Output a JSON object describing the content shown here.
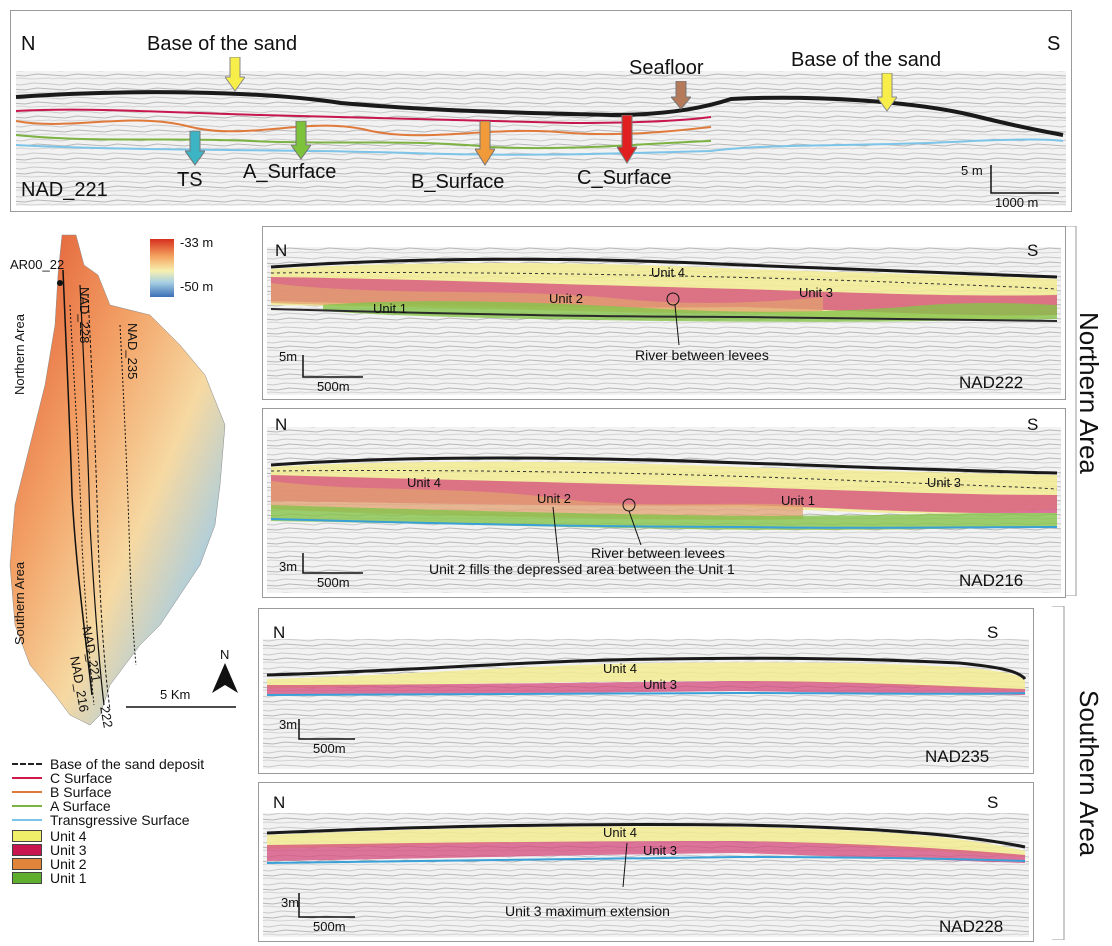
{
  "top_profile": {
    "name": "NAD_221",
    "north": "N",
    "south": "S",
    "labels": {
      "base_sand_left": "Base of the sand",
      "base_sand_right": "Base of the sand",
      "seafloor": "Seafloor",
      "ts": "TS",
      "a_surface": "A_Surface",
      "b_surface": "B_Surface",
      "c_surface": "C_Surface"
    },
    "scale_v": "5 m",
    "scale_h": "1000 m"
  },
  "map": {
    "colorbar_max": "-33 m",
    "colorbar_min": "-50 m",
    "profile_labels": [
      "AR00_22",
      "NAD_228",
      "NAD_235",
      "NAD_221",
      "NAD_216",
      "222"
    ],
    "area_north": "Northern Area",
    "area_south": "Southern Area",
    "north_arrow": "N",
    "scale": "5 Km"
  },
  "legend": [
    {
      "label": "Base of the sand deposit",
      "kind": "dashed",
      "color": "#222222"
    },
    {
      "label": "C Surface",
      "kind": "line",
      "color": "#d0194a"
    },
    {
      "label": "B Surface",
      "kind": "line",
      "color": "#e07a3a"
    },
    {
      "label": "A Surface",
      "kind": "line",
      "color": "#7cb342"
    },
    {
      "label": "Transgressive Surface",
      "kind": "line",
      "color": "#7cc4e8"
    },
    {
      "label": "Unit 4",
      "kind": "box",
      "color": "#f0ef6a"
    },
    {
      "label": "Unit 3",
      "kind": "box",
      "color": "#c8174f"
    },
    {
      "label": "Unit 2",
      "kind": "box",
      "color": "#e0843a"
    },
    {
      "label": "Unit 1",
      "kind": "box",
      "color": "#5fae2e"
    }
  ],
  "colors": {
    "unit4": "#e8e87a",
    "unit3": "#c23a6a",
    "unit2": "#d9885a",
    "unit1": "#8cc24a",
    "ts": "#3aa0d8",
    "seafloor": "#1a1a1a"
  },
  "side_labels": {
    "northern": "Northern Area",
    "southern": "Southern Area"
  },
  "panels": [
    {
      "name": "NAD222",
      "north": "N",
      "south": "S",
      "units": [
        "Unit 4",
        "Unit 2",
        "Unit 3",
        "Unit 1"
      ],
      "annotations": [
        "River between levees"
      ],
      "scale_v": "5m",
      "scale_h": "500m"
    },
    {
      "name": "NAD216",
      "north": "N",
      "south": "S",
      "units": [
        "Unit 4",
        "Unit 2",
        "Unit 1",
        "Unit 3"
      ],
      "annotations": [
        "River between levees",
        "Unit 2 fills the depressed area between the Unit 1"
      ],
      "scale_v": "3m",
      "scale_h": "500m"
    },
    {
      "name": "NAD235",
      "north": "N",
      "south": "S",
      "units": [
        "Unit 4",
        "Unit 3"
      ],
      "annotations": [],
      "scale_v": "3m",
      "scale_h": "500m"
    },
    {
      "name": "NAD228",
      "north": "N",
      "south": "S",
      "units": [
        "Unit 4",
        "Unit 3"
      ],
      "annotations": [
        "Unit 3 maximum extension"
      ],
      "scale_v": "3m",
      "scale_h": "500m"
    }
  ]
}
